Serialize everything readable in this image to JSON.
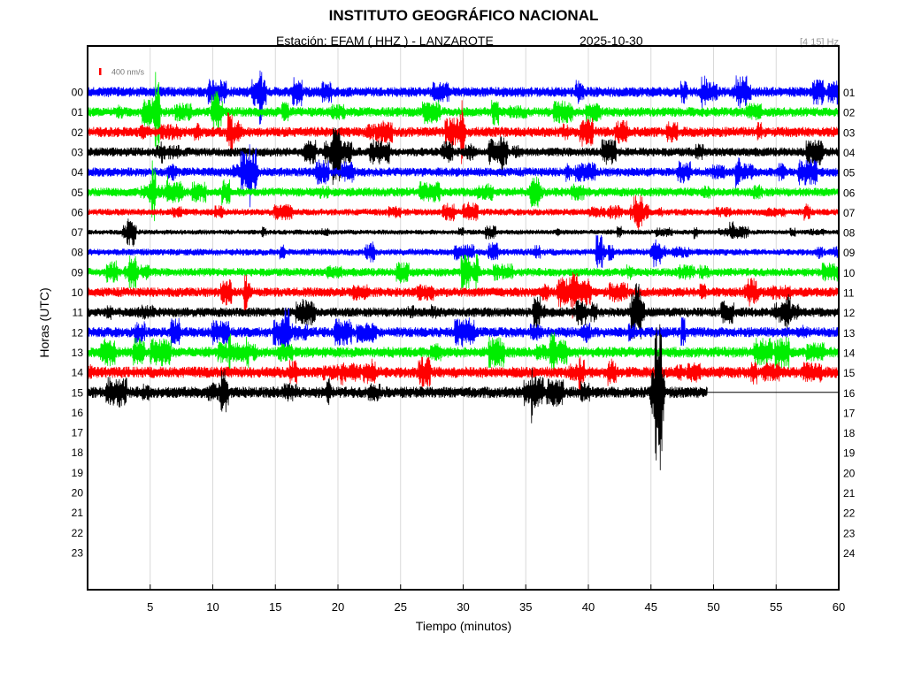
{
  "header": {
    "title": "INSTITUTO GEOGRÁFICO NACIONAL",
    "station": "Estación:  EFAM ( HHZ ) - LANZAROTE",
    "date": "2025-10-30",
    "filter": "[4 15] Hz"
  },
  "colors": {
    "blue": "#0000ff",
    "green": "#00ee00",
    "red": "#ff0000",
    "black": "#000000",
    "scale_bar": "#ff0000",
    "grid": "#d9d9d9"
  },
  "chart_data": {
    "type": "line",
    "title": "INSTITUTO GEOGRÁFICO NACIONAL",
    "xlabel": "Tiempo (minutos)",
    "ylabel": "Horas (UTC)",
    "xlim": [
      0,
      60
    ],
    "x_ticks": [
      "5",
      "10",
      "15",
      "20",
      "25",
      "30",
      "35",
      "40",
      "45",
      "50",
      "55",
      "60"
    ],
    "left_hour_labels": [
      "00",
      "01",
      "02",
      "03",
      "04",
      "05",
      "06",
      "07",
      "08",
      "09",
      "10",
      "11",
      "12",
      "13",
      "14",
      "15",
      "16",
      "17",
      "18",
      "19",
      "20",
      "21",
      "22",
      "23"
    ],
    "right_hour_labels": [
      "01",
      "02",
      "03",
      "04",
      "05",
      "06",
      "07",
      "08",
      "09",
      "10",
      "11",
      "12",
      "13",
      "14",
      "15",
      "16",
      "17",
      "18",
      "19",
      "20",
      "21",
      "22",
      "23",
      "24"
    ],
    "grid": "vertical",
    "scale_label": "400 nm/s",
    "series": [
      {
        "hour": "00",
        "color": "blue",
        "end_minute": 60,
        "amplitude": 0.9
      },
      {
        "hour": "01",
        "color": "green",
        "end_minute": 60,
        "amplitude": 0.85
      },
      {
        "hour": "02",
        "color": "red",
        "end_minute": 60,
        "amplitude": 0.9
      },
      {
        "hour": "03",
        "color": "black",
        "end_minute": 60,
        "amplitude": 0.8
      },
      {
        "hour": "04",
        "color": "blue",
        "end_minute": 60,
        "amplitude": 0.8
      },
      {
        "hour": "05",
        "color": "green",
        "end_minute": 60,
        "amplitude": 0.8
      },
      {
        "hour": "06",
        "color": "red",
        "end_minute": 60,
        "amplitude": 0.6
      },
      {
        "hour": "07",
        "color": "black",
        "end_minute": 60,
        "amplitude": 0.45
      },
      {
        "hour": "08",
        "color": "blue",
        "end_minute": 60,
        "amplitude": 0.6
      },
      {
        "hour": "09",
        "color": "green",
        "end_minute": 60,
        "amplitude": 0.75
      },
      {
        "hour": "10",
        "color": "red",
        "end_minute": 60,
        "amplitude": 0.85
      },
      {
        "hour": "11",
        "color": "black",
        "end_minute": 60,
        "amplitude": 0.85
      },
      {
        "hour": "12",
        "color": "blue",
        "end_minute": 60,
        "amplitude": 0.9
      },
      {
        "hour": "13",
        "color": "green",
        "end_minute": 60,
        "amplitude": 0.95
      },
      {
        "hour": "14",
        "color": "red",
        "end_minute": 60,
        "amplitude": 1.0
      },
      {
        "hour": "15",
        "color": "black",
        "end_minute": 49.5,
        "amplitude": 1.0
      }
    ]
  }
}
